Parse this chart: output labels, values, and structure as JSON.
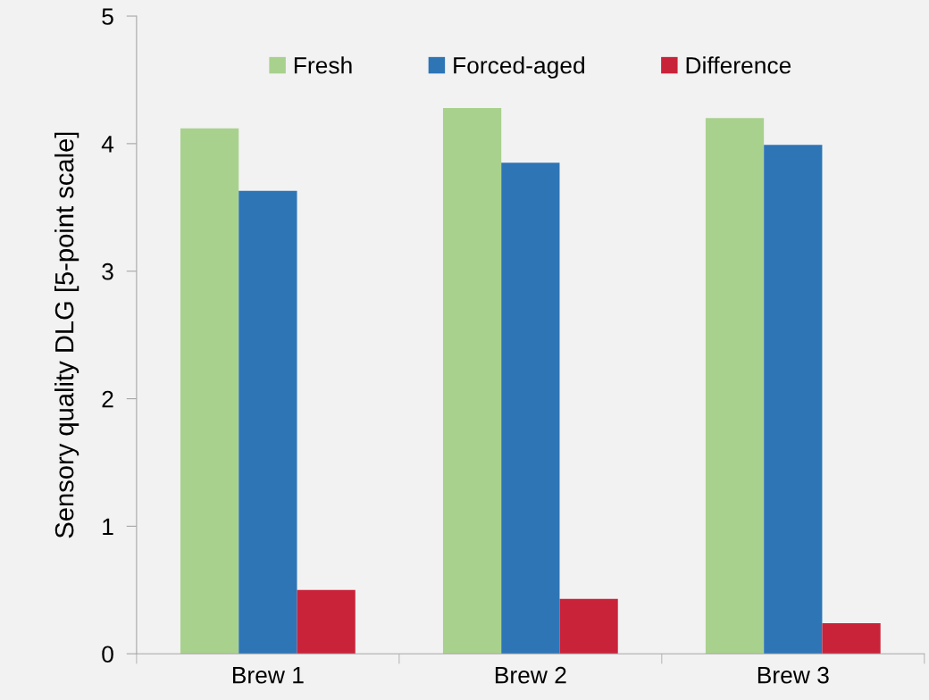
{
  "chart_data": {
    "type": "bar",
    "ylabel": "Sensory quality DLG [5-point scale]",
    "categories": [
      "Brew 1",
      "Brew 2",
      "Brew 3"
    ],
    "series": [
      {
        "name": "Fresh",
        "color": "#a9d18e",
        "values": [
          4.12,
          4.28,
          4.2
        ]
      },
      {
        "name": "Forced-aged",
        "color": "#2e75b6",
        "values": [
          3.63,
          3.85,
          3.99
        ]
      },
      {
        "name": "Difference",
        "color": "#c9233a",
        "values": [
          0.5,
          0.43,
          0.24
        ]
      }
    ],
    "ylim": [
      0,
      5
    ],
    "yticks": [
      0,
      1,
      2,
      3,
      4,
      5
    ],
    "grid": false,
    "legend": "top"
  }
}
